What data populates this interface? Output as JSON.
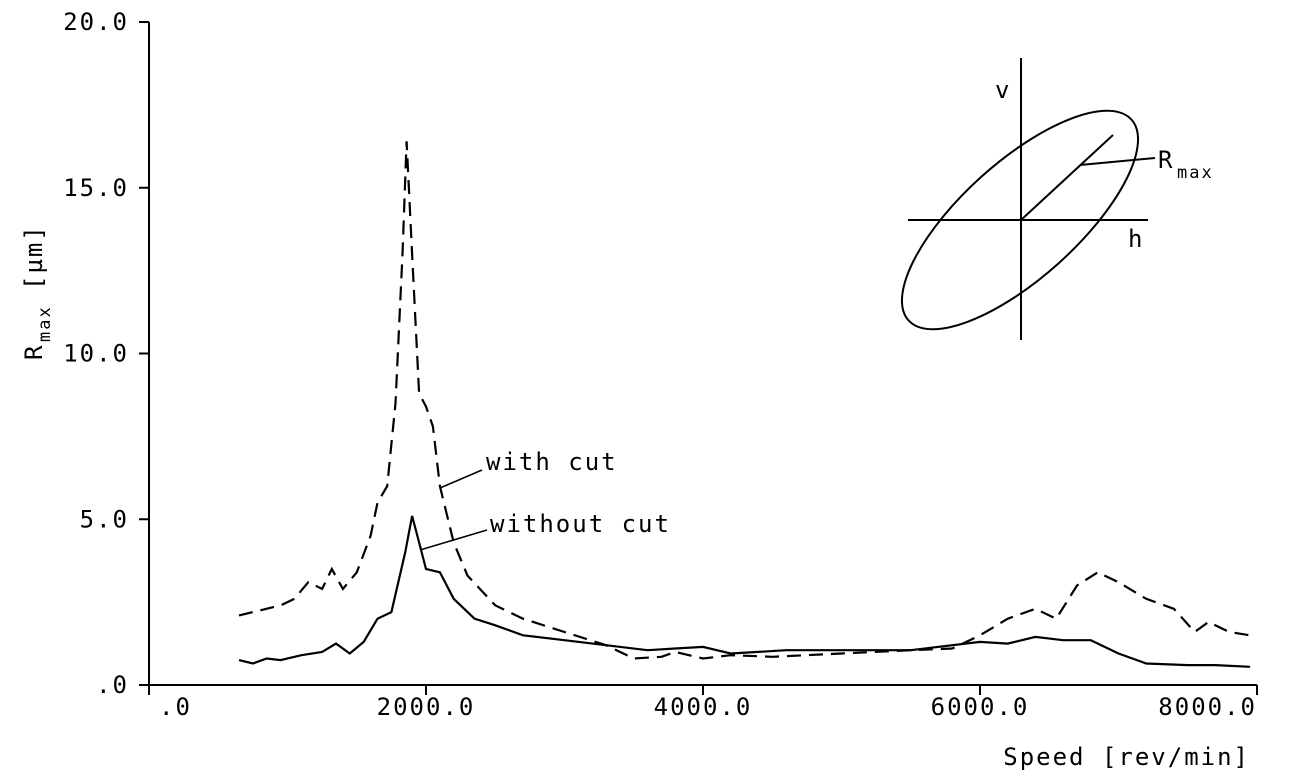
{
  "chart_data": {
    "type": "line",
    "x_label": "Speed [rev/min]",
    "y_label": {
      "main": "R",
      "sub": "max",
      "unit": "[µm]"
    },
    "xlim": [
      0,
      8000
    ],
    "ylim": [
      0,
      20
    ],
    "xticks": [
      {
        "value": 0,
        "label": ".0"
      },
      {
        "value": 2000,
        "label": "2000.0"
      },
      {
        "value": 4000,
        "label": "4000.0"
      },
      {
        "value": 6000,
        "label": "6000.0"
      },
      {
        "value": 8000,
        "label": "8000.0"
      }
    ],
    "yticks": [
      {
        "value": 0,
        "label": ".0"
      },
      {
        "value": 5,
        "label": "5.0"
      },
      {
        "value": 10,
        "label": "10.0"
      },
      {
        "value": 15,
        "label": "15.0"
      },
      {
        "value": 20,
        "label": "20.0"
      }
    ],
    "series": [
      {
        "name": "with cut",
        "color": "#000000",
        "dash": true,
        "x": [
          650,
          800,
          950,
          1050,
          1150,
          1250,
          1320,
          1400,
          1500,
          1600,
          1650,
          1720,
          1780,
          1830,
          1860,
          1900,
          1950,
          2000,
          2050,
          2100,
          2200,
          2300,
          2500,
          2700,
          3000,
          3300,
          3500,
          3700,
          3800,
          4000,
          4200,
          4500,
          5000,
          5500,
          5800,
          6000,
          6200,
          6400,
          6550,
          6700,
          6850,
          7000,
          7200,
          7400,
          7550,
          7650,
          7800,
          7950
        ],
        "values": [
          2.1,
          2.25,
          2.4,
          2.6,
          3.1,
          2.9,
          3.5,
          2.9,
          3.4,
          4.5,
          5.5,
          6.0,
          8.5,
          13,
          16.4,
          13,
          8.8,
          8.4,
          7.8,
          6.0,
          4.3,
          3.3,
          2.4,
          2.0,
          1.6,
          1.2,
          0.8,
          0.85,
          1.0,
          0.8,
          0.9,
          0.85,
          0.95,
          1.05,
          1.1,
          1.5,
          2.0,
          2.3,
          2.0,
          3.0,
          3.4,
          3.1,
          2.6,
          2.3,
          1.6,
          1.9,
          1.6,
          1.5
        ]
      },
      {
        "name": "without cut",
        "color": "#000000",
        "dash": false,
        "x": [
          650,
          750,
          850,
          950,
          1100,
          1250,
          1350,
          1450,
          1550,
          1650,
          1750,
          1850,
          1900,
          1950,
          2000,
          2100,
          2200,
          2350,
          2500,
          2700,
          3000,
          3300,
          3600,
          3800,
          4000,
          4200,
          4400,
          4600,
          5000,
          5500,
          6000,
          6200,
          6400,
          6600,
          6800,
          7000,
          7200,
          7500,
          7700,
          7950
        ],
        "values": [
          0.75,
          0.65,
          0.8,
          0.75,
          0.9,
          1.0,
          1.25,
          0.95,
          1.3,
          2.0,
          2.2,
          4.0,
          5.1,
          4.3,
          3.5,
          3.4,
          2.6,
          2.0,
          1.8,
          1.5,
          1.35,
          1.2,
          1.05,
          1.1,
          1.15,
          0.95,
          1.0,
          1.05,
          1.05,
          1.05,
          1.3,
          1.25,
          1.45,
          1.35,
          1.35,
          0.95,
          0.65,
          0.6,
          0.6,
          0.55
        ]
      }
    ],
    "inset": {
      "v": "v",
      "h": "h",
      "r_main": "R",
      "r_sub": "max"
    }
  }
}
